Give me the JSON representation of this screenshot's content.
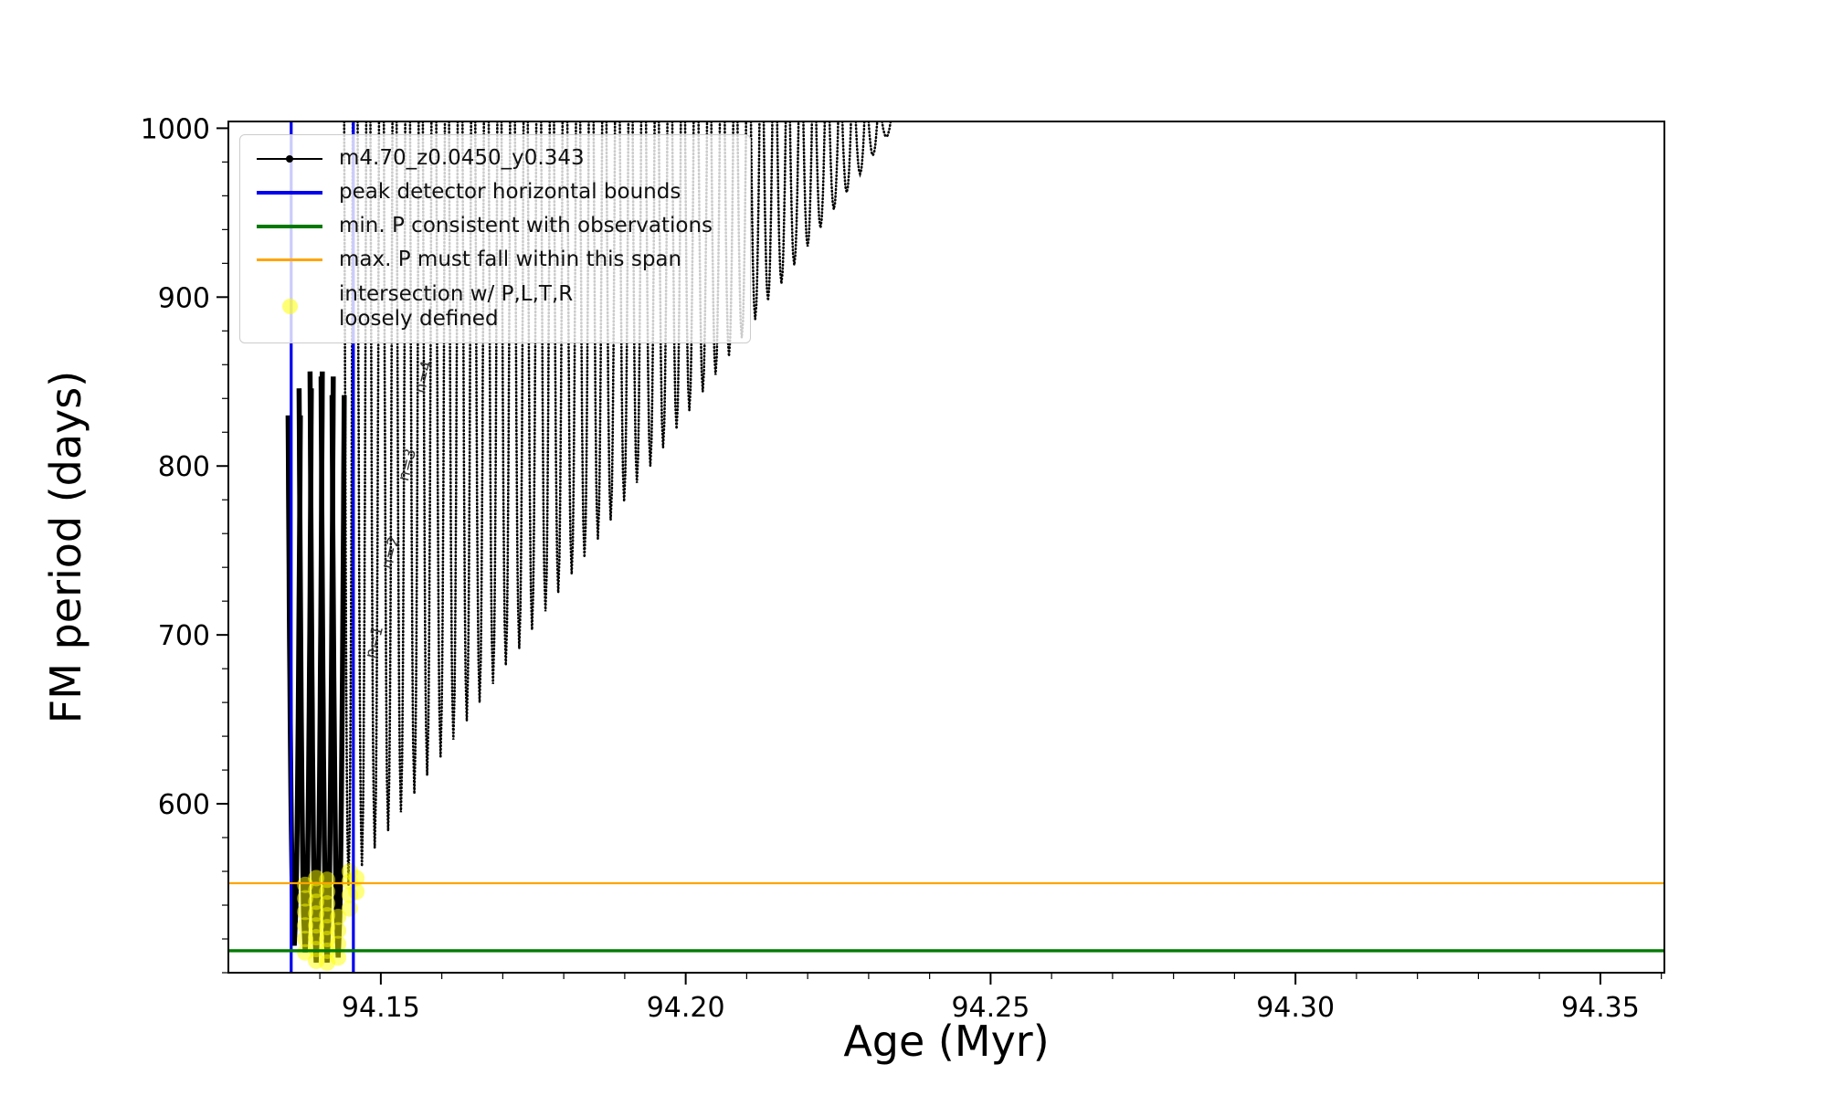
{
  "figure": {
    "xlabel": "Age (Myr)",
    "ylabel": "FM period (days)"
  },
  "legend": {
    "position": "upper left"
  },
  "chart_data": {
    "type": "line",
    "series_name": "m4.70_z0.0450_y0.343",
    "series_color": "#000000",
    "xlabel": "Age (Myr)",
    "ylabel": "FM period (days)",
    "xlim": [
      94.125,
      94.3605
    ],
    "ylim": [
      500,
      1004
    ],
    "grid": false,
    "x_ticks": {
      "values": [
        94.15,
        94.2,
        94.25,
        94.3,
        94.35
      ],
      "labels": [
        "94.15",
        "94.20",
        "94.25",
        "94.30",
        "94.35"
      ]
    },
    "y_ticks": {
      "values": [
        600,
        700,
        800,
        900,
        1000
      ],
      "labels": [
        "600",
        "700",
        "800",
        "900",
        "1000"
      ]
    },
    "x_minor_step": 0.01,
    "y_minor_step": 20,
    "vlines": {
      "label": "peak detector horizontal bounds",
      "color": "#0000ee",
      "x": [
        94.1353,
        94.1455
      ]
    },
    "hline_min": {
      "label": "min. P consistent with observations",
      "color": "#007a00",
      "y": 513
    },
    "hline_max": {
      "label": "max. P must fall within this span",
      "color": "#ffa500",
      "y": 553
    },
    "comb": {
      "y_top": 1004,
      "half_width": 0.0007,
      "points": [
        [
          94.1447,
          552
        ],
        [
          94.1469,
          563
        ],
        [
          94.149,
          574
        ],
        [
          94.1512,
          584
        ],
        [
          94.1533,
          595
        ],
        [
          94.1555,
          606
        ],
        [
          94.1576,
          617
        ],
        [
          94.1598,
          628
        ],
        [
          94.1619,
          638
        ],
        [
          94.1641,
          649
        ],
        [
          94.1662,
          660
        ],
        [
          94.1684,
          671
        ],
        [
          94.1705,
          682
        ],
        [
          94.1727,
          692
        ],
        [
          94.1748,
          703
        ],
        [
          94.177,
          714
        ],
        [
          94.1791,
          725
        ],
        [
          94.1813,
          736
        ],
        [
          94.1834,
          746
        ],
        [
          94.1856,
          757
        ],
        [
          94.1877,
          768
        ],
        [
          94.1899,
          779
        ],
        [
          94.192,
          790
        ],
        [
          94.1942,
          800
        ],
        [
          94.1963,
          811
        ],
        [
          94.1985,
          822
        ],
        [
          94.2006,
          833
        ],
        [
          94.2028,
          844
        ],
        [
          94.2049,
          854
        ],
        [
          94.2071,
          865
        ],
        [
          94.2092,
          876
        ],
        [
          94.2114,
          887
        ],
        [
          94.2135,
          898
        ],
        [
          94.2157,
          908
        ],
        [
          94.2178,
          919
        ],
        [
          94.22,
          930
        ],
        [
          94.2221,
          941
        ],
        [
          94.2243,
          952
        ],
        [
          94.2264,
          962
        ],
        [
          94.2286,
          973
        ],
        [
          94.2307,
          984
        ],
        [
          94.2329,
          995
        ]
      ]
    },
    "dense_half_width": 0.001,
    "dense_spikes": [
      {
        "x": 94.1358,
        "y_min": 516,
        "y_top": 830
      },
      {
        "x": 94.1376,
        "y_min": 512,
        "y_top": 846
      },
      {
        "x": 94.1394,
        "y_min": 506,
        "y_top": 856
      },
      {
        "x": 94.1412,
        "y_min": 506,
        "y_top": 853
      },
      {
        "x": 94.143,
        "y_min": 509,
        "y_top": 842
      }
    ],
    "intersection": {
      "label": "intersection w/ P,L,T,R\nloosely defined",
      "color": "#ffff00",
      "points": [
        [
          94.1376,
          512
        ],
        [
          94.1376,
          520
        ],
        [
          94.1376,
          528
        ],
        [
          94.1376,
          536
        ],
        [
          94.1376,
          544
        ],
        [
          94.1376,
          552
        ],
        [
          94.1394,
          507
        ],
        [
          94.1394,
          514
        ],
        [
          94.1394,
          521
        ],
        [
          94.1394,
          528
        ],
        [
          94.1394,
          535
        ],
        [
          94.1394,
          542
        ],
        [
          94.1394,
          549
        ],
        [
          94.1394,
          556
        ],
        [
          94.1412,
          506
        ],
        [
          94.1412,
          513
        ],
        [
          94.1412,
          520
        ],
        [
          94.1412,
          527
        ],
        [
          94.1412,
          534
        ],
        [
          94.1412,
          541
        ],
        [
          94.1412,
          548
        ],
        [
          94.1412,
          555
        ],
        [
          94.143,
          509
        ],
        [
          94.143,
          517
        ],
        [
          94.143,
          525
        ],
        [
          94.143,
          533
        ],
        [
          94.1449,
          538
        ],
        [
          94.1449,
          546
        ],
        [
          94.1449,
          554
        ],
        [
          94.1449,
          560
        ],
        [
          94.146,
          548
        ],
        [
          94.146,
          556
        ]
      ]
    },
    "annotations": [
      {
        "text": "n=1",
        "x": 94.1497,
        "y": 695,
        "rotation": -76
      },
      {
        "text": "n=2",
        "x": 94.1524,
        "y": 748,
        "rotation": -76
      },
      {
        "text": "n=3",
        "x": 94.1551,
        "y": 800,
        "rotation": -76
      },
      {
        "text": "n=4",
        "x": 94.1578,
        "y": 852,
        "rotation": -76
      }
    ]
  }
}
